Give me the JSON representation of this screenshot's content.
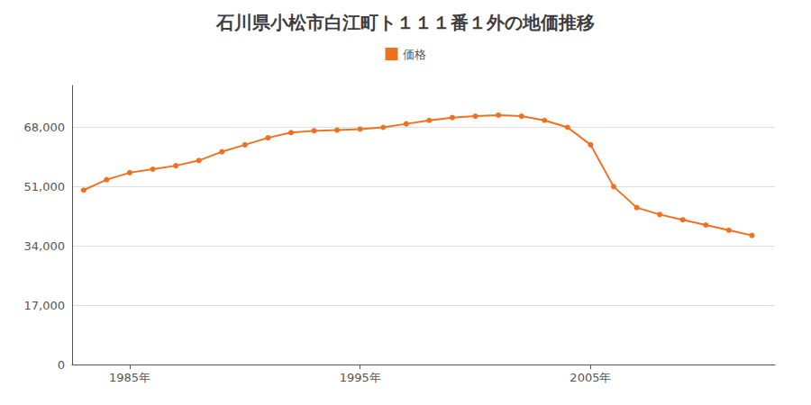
{
  "chart_data": {
    "type": "line",
    "title": "石川県小松市白江町ト１１１番１外の地価推移",
    "x": [
      1983,
      1984,
      1985,
      1986,
      1987,
      1988,
      1989,
      1990,
      1991,
      1992,
      1993,
      1994,
      1995,
      1996,
      1997,
      1998,
      1999,
      2000,
      2001,
      2002,
      2003,
      2004,
      2005,
      2006,
      2007,
      2008,
      2009,
      2010,
      2011,
      2012
    ],
    "series": [
      {
        "name": "価格",
        "color": "#F07020",
        "values": [
          50000,
          53000,
          55000,
          56000,
          57000,
          58500,
          61000,
          63000,
          65000,
          66500,
          67000,
          67200,
          67500,
          68000,
          69000,
          70000,
          70800,
          71200,
          71500,
          71200,
          70000,
          68000,
          63000,
          51000,
          45000,
          43000,
          41500,
          40000,
          38500,
          37000
        ]
      }
    ],
    "xlim": [
      1982.5,
      2013
    ],
    "xticks": [
      {
        "value": 1985,
        "label": "1985年"
      },
      {
        "value": 1995,
        "label": "1995年"
      },
      {
        "value": 2005,
        "label": "2005年"
      }
    ],
    "ylim": [
      0,
      80000
    ],
    "yticks": [
      0,
      {
        "value": 17000,
        "label": "17,000"
      },
      {
        "value": 34000,
        "label": "34,000"
      },
      {
        "value": 51000,
        "label": "51,000"
      },
      {
        "value": 68000,
        "label": "68,000"
      }
    ],
    "grid": true,
    "legend": "top",
    "marker": "circle"
  }
}
